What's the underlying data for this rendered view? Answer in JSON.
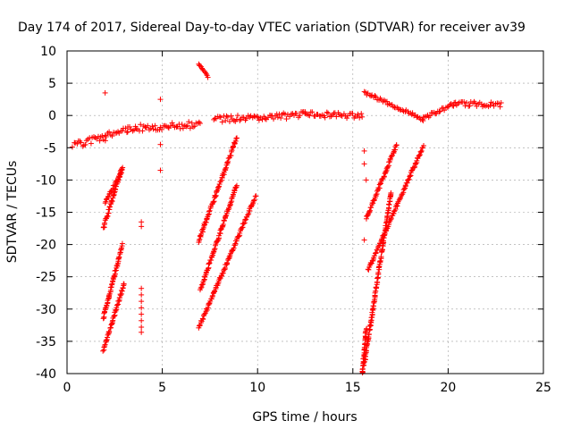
{
  "chart_data": {
    "type": "scatter",
    "title": "Day 174 of 2017, Sidereal Day-to-day VTEC variation (SDTVAR) for receiver av39",
    "xlabel": "GPS time / hours",
    "ylabel": "SDTVAR / TECUs",
    "xlim": [
      0,
      25
    ],
    "ylim": [
      -40,
      10
    ],
    "xticks": [
      0,
      5,
      10,
      15,
      20,
      25
    ],
    "yticks": [
      10,
      5,
      0,
      -5,
      -10,
      -15,
      -20,
      -25,
      -30,
      -35,
      -40
    ],
    "grid": true,
    "marker": "+",
    "series_color": "#ff0000",
    "segments": [
      {
        "name": "main-early",
        "x0": 0.3,
        "x1": 2.0,
        "y0": -4.6,
        "y1": -3.4,
        "spread": 1.1
      },
      {
        "name": "main-mid1",
        "x0": 2.0,
        "x1": 3.2,
        "y0": -3.0,
        "y1": -2.2,
        "spread": 0.9
      },
      {
        "name": "main-mid2",
        "x0": 3.2,
        "x1": 7.0,
        "y0": -2.0,
        "y1": -1.4,
        "spread": 1.1
      },
      {
        "name": "main-mid3",
        "x0": 7.7,
        "x1": 12.5,
        "y0": -0.6,
        "y1": 0.1,
        "spread": 1.0
      },
      {
        "name": "main-mid4",
        "x0": 12.5,
        "x1": 15.5,
        "y0": 0.1,
        "y1": 0.0,
        "spread": 0.9
      },
      {
        "name": "late-dip",
        "x0": 15.6,
        "x1": 18.7,
        "y0": 3.6,
        "y1": -0.6,
        "spread": 0.5
      },
      {
        "name": "late-rise",
        "x0": 18.7,
        "x1": 20.3,
        "y0": -0.4,
        "y1": 1.7,
        "spread": 0.6
      },
      {
        "name": "late-flat",
        "x0": 20.3,
        "x1": 22.8,
        "y0": 1.8,
        "y1": 1.7,
        "spread": 0.8
      },
      {
        "name": "arc-a1",
        "x0": 1.9,
        "x1": 2.9,
        "y0": -17.5,
        "y1": -8.0,
        "spread": 0.5
      },
      {
        "name": "arc-a2",
        "x0": 2.0,
        "x1": 2.9,
        "y0": -13.5,
        "y1": -8.5,
        "spread": 0.4
      },
      {
        "name": "arc-a3",
        "x0": 1.9,
        "x1": 2.9,
        "y0": -31.5,
        "y1": -20.0,
        "spread": 0.4
      },
      {
        "name": "arc-a4",
        "x0": 1.9,
        "x1": 3.0,
        "y0": -36.5,
        "y1": -26.0,
        "spread": 0.4
      },
      {
        "name": "arc-b1",
        "x0": 6.9,
        "x1": 8.9,
        "y0": -19.5,
        "y1": -3.5,
        "spread": 0.5
      },
      {
        "name": "arc-b2",
        "x0": 7.0,
        "x1": 8.9,
        "y0": -27.0,
        "y1": -10.8,
        "spread": 0.4
      },
      {
        "name": "arc-b3",
        "x0": 6.9,
        "x1": 9.9,
        "y0": -33.0,
        "y1": -12.5,
        "spread": 0.4
      },
      {
        "name": "arc-b4",
        "x0": 6.9,
        "x1": 7.4,
        "y0": 8.0,
        "y1": 6.0,
        "spread": 0.2
      },
      {
        "name": "arc-c1",
        "x0": 15.7,
        "x1": 17.3,
        "y0": -16.0,
        "y1": -4.5,
        "spread": 0.4
      },
      {
        "name": "arc-c2",
        "x0": 15.8,
        "x1": 18.7,
        "y0": -24.0,
        "y1": -4.7,
        "spread": 0.4
      },
      {
        "name": "arc-c3",
        "x0": 15.6,
        "x1": 17.0,
        "y0": -38.5,
        "y1": -12.0,
        "spread": 0.5
      },
      {
        "name": "arc-c4",
        "x0": 15.5,
        "x1": 15.7,
        "y0": -40.0,
        "y1": -33.0,
        "spread": 0.3
      }
    ],
    "isolated_points": [
      {
        "x": 2.0,
        "y": 3.5
      },
      {
        "x": 4.9,
        "y": 2.5
      },
      {
        "x": 4.9,
        "y": -4.5
      },
      {
        "x": 4.9,
        "y": -8.5
      },
      {
        "x": 3.9,
        "y": -16.5
      },
      {
        "x": 3.9,
        "y": -17.2
      },
      {
        "x": 3.9,
        "y": -26.8
      },
      {
        "x": 3.9,
        "y": -27.8
      },
      {
        "x": 3.9,
        "y": -28.8
      },
      {
        "x": 3.9,
        "y": -29.8
      },
      {
        "x": 3.9,
        "y": -30.8
      },
      {
        "x": 3.9,
        "y": -31.8
      },
      {
        "x": 3.9,
        "y": -32.8
      },
      {
        "x": 3.9,
        "y": -33.6
      },
      {
        "x": 15.6,
        "y": -7.5
      },
      {
        "x": 15.7,
        "y": -10.0
      },
      {
        "x": 15.6,
        "y": -19.3
      },
      {
        "x": 15.6,
        "y": -5.5
      }
    ]
  }
}
